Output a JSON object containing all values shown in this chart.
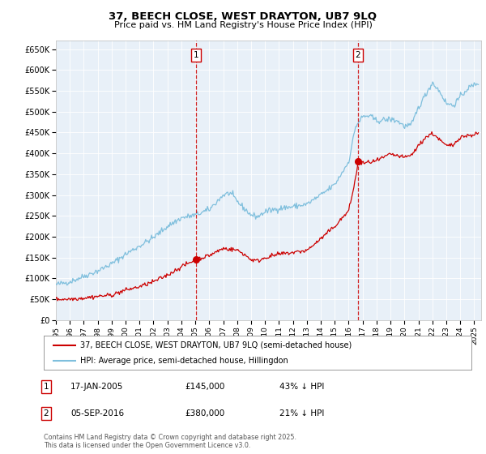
{
  "title": "37, BEECH CLOSE, WEST DRAYTON, UB7 9LQ",
  "subtitle": "Price paid vs. HM Land Registry's House Price Index (HPI)",
  "ylabel_ticks": [
    "£0",
    "£50K",
    "£100K",
    "£150K",
    "£200K",
    "£250K",
    "£300K",
    "£350K",
    "£400K",
    "£450K",
    "£500K",
    "£550K",
    "£600K",
    "£650K"
  ],
  "ytick_values": [
    0,
    50000,
    100000,
    150000,
    200000,
    250000,
    300000,
    350000,
    400000,
    450000,
    500000,
    550000,
    600000,
    650000
  ],
  "ylim": [
    0,
    670000
  ],
  "xlim_start": 1995.0,
  "xlim_end": 2025.5,
  "hpi_color": "#7fbfdd",
  "price_color": "#cc0000",
  "vline_color": "#cc0000",
  "plot_bg_color": "#e8f0f8",
  "event1_x": 2005.04,
  "event1_price": 145000,
  "event2_x": 2016.67,
  "event2_price": 380000,
  "event1_date": "17-JAN-2005",
  "event1_amount": "£145,000",
  "event1_pct": "43% ↓ HPI",
  "event2_date": "05-SEP-2016",
  "event2_amount": "£380,000",
  "event2_pct": "21% ↓ HPI",
  "legend_line1": "37, BEECH CLOSE, WEST DRAYTON, UB7 9LQ (semi-detached house)",
  "legend_line2": "HPI: Average price, semi-detached house, Hillingdon",
  "footnote": "Contains HM Land Registry data © Crown copyright and database right 2025.\nThis data is licensed under the Open Government Licence v3.0.",
  "xtick_years": [
    1995,
    1996,
    1997,
    1998,
    1999,
    2000,
    2001,
    2002,
    2003,
    2004,
    2005,
    2006,
    2007,
    2008,
    2009,
    2010,
    2011,
    2012,
    2013,
    2014,
    2015,
    2016,
    2017,
    2018,
    2019,
    2020,
    2021,
    2022,
    2023,
    2024,
    2025
  ]
}
